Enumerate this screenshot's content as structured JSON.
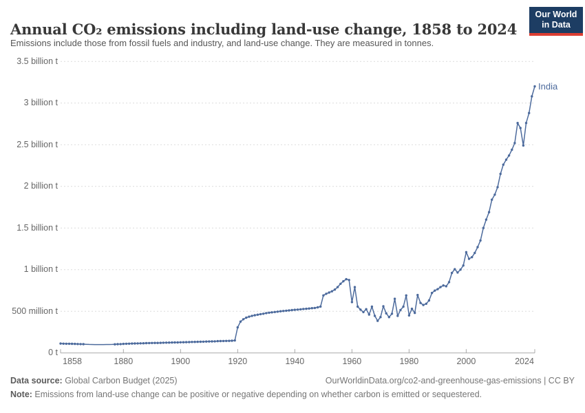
{
  "header": {
    "title": "Annual CO₂ emissions including land-use change, 1858 to 2024",
    "subtitle": "Emissions include those from fossil fuels and industry, and land-use change. They are measured in tonnes.",
    "logo": {
      "line1": "Our World",
      "line2": "in Data"
    }
  },
  "chart_data": {
    "type": "line",
    "title": "Annual CO₂ emissions including land-use change, 1858 to 2024",
    "entity_label": "India",
    "unit": "tonnes",
    "ylim_million_tonnes": [
      0,
      3500
    ],
    "grid": "dashed-horizontal",
    "legend_position": "end-of-line-label",
    "y_ticks": [
      {
        "label": "0 t",
        "value": 0
      },
      {
        "label": "500 million t",
        "value": 500
      },
      {
        "label": "1 billion t",
        "value": 1000
      },
      {
        "label": "1.5 billion t",
        "value": 1500
      },
      {
        "label": "2 billion t",
        "value": 2000
      },
      {
        "label": "2.5 billion t",
        "value": 2500
      },
      {
        "label": "3 billion t",
        "value": 3000
      },
      {
        "label": "3.5 billion t",
        "value": 3500
      }
    ],
    "x_ticks": [
      1858,
      1880,
      1900,
      1920,
      1940,
      1960,
      1980,
      2000,
      2024
    ],
    "series": [
      {
        "name": "India",
        "x_start_year": 1858,
        "x_end_year": 2024,
        "marker_gap_years": [
          1867,
          1876
        ],
        "values_million_tonnes": [
          112,
          111,
          110,
          110,
          109,
          108,
          107,
          106,
          105,
          103,
          102,
          101,
          100,
          100,
          100,
          100,
          101,
          101,
          102,
          103,
          105,
          106,
          108,
          110,
          111,
          112,
          113,
          114,
          115,
          116,
          117,
          118,
          119,
          120,
          120,
          121,
          122,
          123,
          124,
          125,
          126,
          126,
          127,
          128,
          129,
          130,
          131,
          132,
          133,
          134,
          135,
          136,
          137,
          138,
          139,
          141,
          142,
          143,
          144,
          145,
          146,
          150,
          307,
          376,
          404,
          423,
          435,
          445,
          452,
          459,
          465,
          470,
          478,
          483,
          487,
          491,
          495,
          500,
          503,
          507,
          510,
          514,
          517,
          520,
          523,
          527,
          530,
          533,
          537,
          540,
          547,
          556,
          690,
          710,
          725,
          740,
          760,
          790,
          830,
          860,
          885,
          875,
          610,
          790,
          555,
          520,
          490,
          525,
          460,
          555,
          445,
          385,
          430,
          560,
          475,
          430,
          470,
          650,
          445,
          515,
          555,
          690,
          450,
          530,
          480,
          695,
          600,
          575,
          590,
          630,
          720,
          748,
          765,
          790,
          810,
          800,
          850,
          960,
          1005,
          965,
          1000,
          1050,
          1210,
          1130,
          1150,
          1200,
          1270,
          1350,
          1500,
          1600,
          1690,
          1840,
          1900,
          1990,
          2150,
          2260,
          2320,
          2370,
          2440,
          2520,
          2760,
          2700,
          2490,
          2760,
          2880,
          3080,
          3200
        ]
      }
    ],
    "colors": {
      "line": "#4c6a9c",
      "entity_label": "#4c6a9c",
      "gridline": "#dcdcdc",
      "axis": "#a8a8a8"
    }
  },
  "footer": {
    "source_label": "Data source:",
    "source_value": " Global Carbon Budget (2025)",
    "link": "OurWorldinData.org/co2-and-greenhouse-gas-emissions",
    "license": " | CC BY",
    "note_label": "Note:",
    "note_value": " Emissions from land-use change can be positive or negative depending on whether carbon is emitted or sequestered."
  }
}
